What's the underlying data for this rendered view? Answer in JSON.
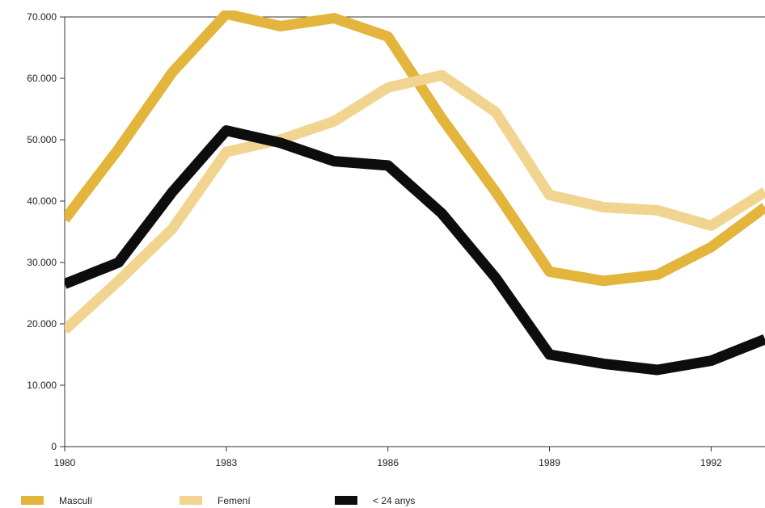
{
  "chart_data": {
    "type": "line",
    "title": "",
    "xlabel": "",
    "ylabel": "",
    "x": [
      1980,
      1981,
      1982,
      1983,
      1984,
      1985,
      1986,
      1987,
      1988,
      1989,
      1990,
      1991,
      1992,
      1993
    ],
    "xlim": [
      1980,
      1993
    ],
    "ylim": [
      0,
      70000
    ],
    "x_ticks": [
      1980,
      1983,
      1986,
      1989,
      1992
    ],
    "y_ticks": [
      0,
      10000,
      20000,
      30000,
      40000,
      50000,
      60000,
      70000
    ],
    "x_tick_labels": [
      "1980",
      "1983",
      "1986",
      "1989",
      "1992"
    ],
    "y_tick_labels": [
      "0",
      "10.000",
      "20.000",
      "30.000",
      "40.000",
      "50.000",
      "60.000",
      "70.000"
    ],
    "grid": false,
    "legend_position": "bottom",
    "series": [
      {
        "name": "Masculí",
        "color": "#e3b53c",
        "values": [
          37000,
          48500,
          61000,
          70500,
          68500,
          69800,
          66800,
          53500,
          41500,
          28500,
          27000,
          28000,
          32500,
          39000
        ]
      },
      {
        "name": "Femení",
        "color": "#f1d48f",
        "values": [
          19000,
          27000,
          35500,
          48000,
          50000,
          53000,
          58500,
          60500,
          54500,
          41000,
          39000,
          38500,
          36000,
          41500
        ]
      },
      {
        "name": "< 24 anys",
        "color": "#0d0d0d",
        "values": [
          26500,
          30000,
          41500,
          51500,
          49500,
          46500,
          45800,
          38000,
          27500,
          15000,
          13500,
          12500,
          14000,
          17500
        ]
      }
    ]
  }
}
